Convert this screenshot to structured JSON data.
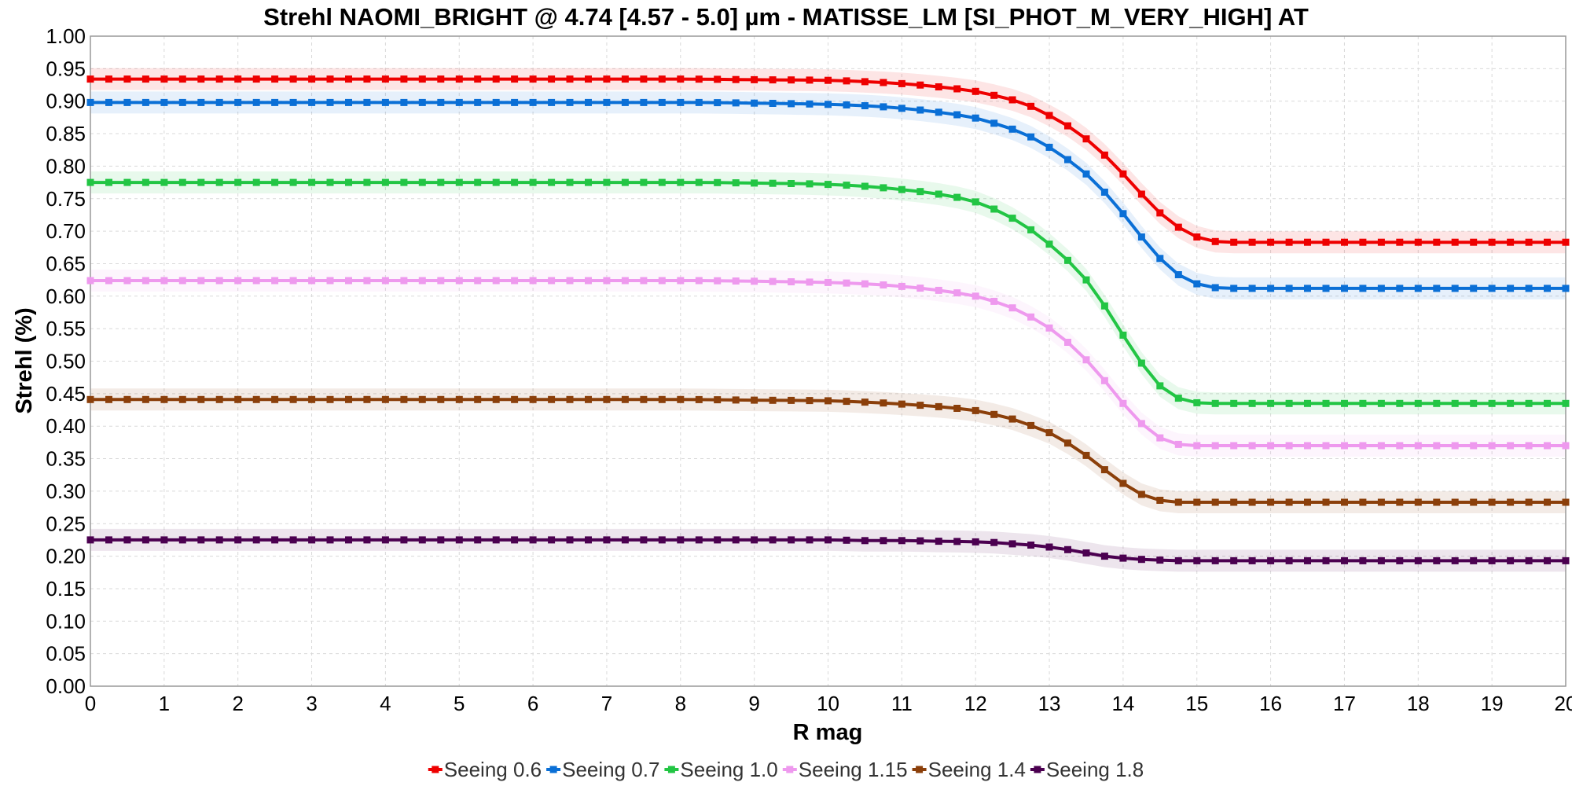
{
  "chart_data": {
    "type": "line",
    "title": "Strehl NAOMI_BRIGHT @ 4.74 [4.57 - 5.0] µm - MATISSE_LM [SI_PHOT_M_VERY_HIGH] AT",
    "xlabel": "R mag",
    "ylabel": "Strehl (%)",
    "xlim": [
      0,
      20
    ],
    "ylim": [
      0,
      1.0
    ],
    "xticks": [
      "0",
      "1",
      "2",
      "3",
      "4",
      "5",
      "6",
      "7",
      "8",
      "9",
      "10",
      "11",
      "12",
      "13",
      "14",
      "15",
      "16",
      "17",
      "18",
      "19",
      "20"
    ],
    "yticks": [
      "0.00",
      "0.05",
      "0.10",
      "0.15",
      "0.20",
      "0.25",
      "0.30",
      "0.35",
      "0.40",
      "0.45",
      "0.50",
      "0.55",
      "0.60",
      "0.65",
      "0.70",
      "0.75",
      "0.80",
      "0.85",
      "0.90",
      "0.95",
      "1.00"
    ],
    "grid": true,
    "legend_position": "bottom-center",
    "x": [
      0,
      1,
      2,
      3,
      4,
      5,
      6,
      7,
      8,
      9,
      10,
      10.5,
      11,
      11.5,
      12,
      12.25,
      12.5,
      12.75,
      13,
      13.25,
      13.5,
      13.75,
      14,
      14.25,
      14.5,
      14.75,
      15,
      15.25,
      15.5,
      16,
      17,
      18,
      19,
      20
    ],
    "series": [
      {
        "name": "Seeing 0.6",
        "color": "#ee0000",
        "values": [
          0.934,
          0.934,
          0.934,
          0.934,
          0.934,
          0.934,
          0.934,
          0.934,
          0.934,
          0.933,
          0.932,
          0.93,
          0.927,
          0.922,
          0.915,
          0.909,
          0.902,
          0.892,
          0.878,
          0.862,
          0.842,
          0.817,
          0.788,
          0.757,
          0.728,
          0.706,
          0.691,
          0.684,
          0.683,
          0.683,
          0.683,
          0.683,
          0.683,
          0.683
        ]
      },
      {
        "name": "Seeing 0.7",
        "color": "#0a6fd6",
        "values": [
          0.898,
          0.898,
          0.898,
          0.898,
          0.898,
          0.898,
          0.898,
          0.898,
          0.898,
          0.897,
          0.895,
          0.893,
          0.889,
          0.883,
          0.874,
          0.866,
          0.857,
          0.845,
          0.829,
          0.81,
          0.788,
          0.76,
          0.727,
          0.691,
          0.658,
          0.633,
          0.619,
          0.613,
          0.612,
          0.612,
          0.612,
          0.612,
          0.612,
          0.612
        ]
      },
      {
        "name": "Seeing 1.0",
        "color": "#22c544",
        "values": [
          0.775,
          0.775,
          0.775,
          0.775,
          0.775,
          0.775,
          0.775,
          0.775,
          0.775,
          0.774,
          0.772,
          0.769,
          0.764,
          0.757,
          0.745,
          0.734,
          0.72,
          0.702,
          0.68,
          0.655,
          0.625,
          0.585,
          0.54,
          0.497,
          0.462,
          0.443,
          0.436,
          0.435,
          0.435,
          0.435,
          0.435,
          0.435,
          0.435,
          0.435
        ]
      },
      {
        "name": "Seeing 1.15",
        "color": "#ee99ee",
        "values": [
          0.624,
          0.624,
          0.624,
          0.624,
          0.624,
          0.624,
          0.624,
          0.624,
          0.624,
          0.623,
          0.621,
          0.619,
          0.615,
          0.609,
          0.6,
          0.592,
          0.582,
          0.568,
          0.551,
          0.529,
          0.502,
          0.47,
          0.435,
          0.404,
          0.382,
          0.372,
          0.37,
          0.37,
          0.37,
          0.37,
          0.37,
          0.37,
          0.37,
          0.37
        ]
      },
      {
        "name": "Seeing 1.4",
        "color": "#8b3f0a",
        "values": [
          0.441,
          0.441,
          0.441,
          0.441,
          0.441,
          0.441,
          0.441,
          0.441,
          0.441,
          0.44,
          0.439,
          0.437,
          0.434,
          0.43,
          0.424,
          0.418,
          0.411,
          0.401,
          0.39,
          0.374,
          0.355,
          0.333,
          0.312,
          0.295,
          0.286,
          0.283,
          0.283,
          0.283,
          0.283,
          0.283,
          0.283,
          0.283,
          0.283,
          0.283
        ]
      },
      {
        "name": "Seeing 1.8",
        "color": "#4b0050",
        "values": [
          0.225,
          0.225,
          0.225,
          0.225,
          0.225,
          0.225,
          0.225,
          0.225,
          0.225,
          0.225,
          0.225,
          0.224,
          0.224,
          0.223,
          0.222,
          0.221,
          0.219,
          0.217,
          0.214,
          0.21,
          0.205,
          0.2,
          0.197,
          0.195,
          0.194,
          0.193,
          0.193,
          0.193,
          0.193,
          0.193,
          0.193,
          0.193,
          0.193,
          0.193
        ]
      }
    ]
  }
}
